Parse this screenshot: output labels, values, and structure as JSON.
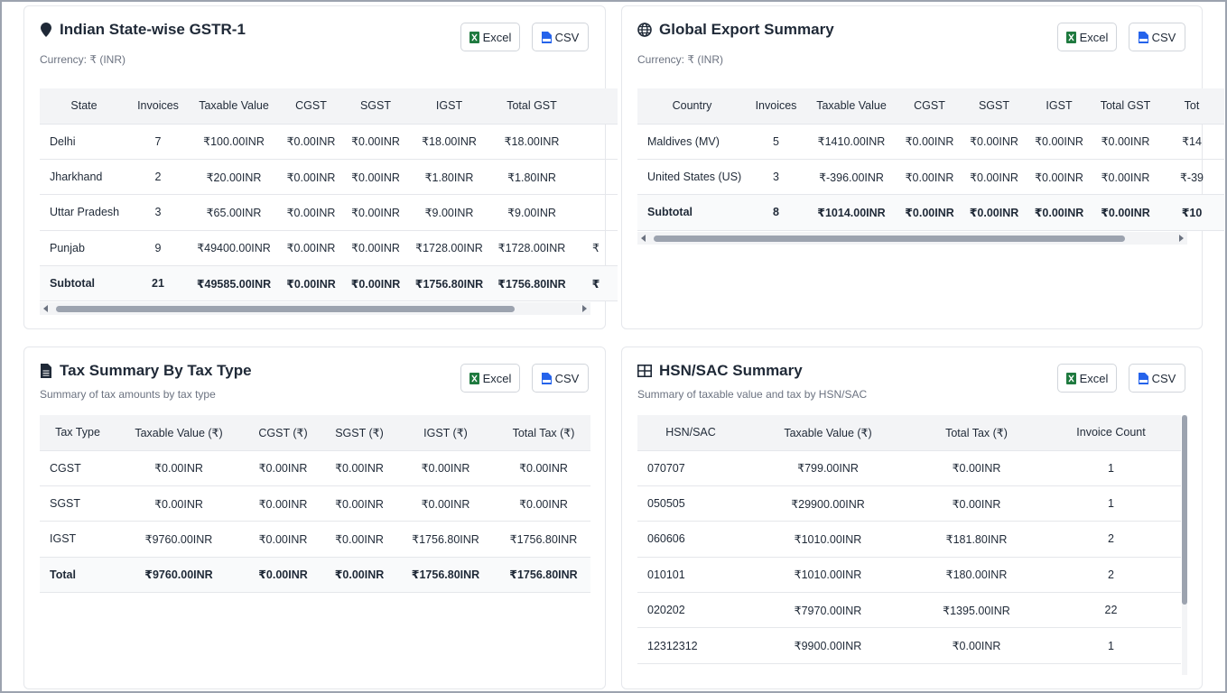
{
  "common": {
    "excel_label": "Excel",
    "csv_label": "CSV"
  },
  "gstr": {
    "title": "Indian State-wise GSTR-1",
    "subtitle": "Currency: ₹ (INR)",
    "headers": [
      "State",
      "Invoices",
      "Taxable Value",
      "CGST",
      "SGST",
      "IGST",
      "Total GST",
      ""
    ],
    "rows": [
      [
        "Delhi",
        "7",
        "₹100.00INR",
        "₹0.00INR",
        "₹0.00INR",
        "₹18.00INR",
        "₹18.00INR",
        ""
      ],
      [
        "Jharkhand",
        "2",
        "₹20.00INR",
        "₹0.00INR",
        "₹0.00INR",
        "₹1.80INR",
        "₹1.80INR",
        ""
      ],
      [
        "Uttar Pradesh",
        "3",
        "₹65.00INR",
        "₹0.00INR",
        "₹0.00INR",
        "₹9.00INR",
        "₹9.00INR",
        ""
      ],
      [
        "Punjab",
        "9",
        "₹49400.00INR",
        "₹0.00INR",
        "₹0.00INR",
        "₹1728.00INR",
        "₹1728.00INR",
        "₹"
      ],
      [
        "Subtotal",
        "21",
        "₹49585.00INR",
        "₹0.00INR",
        "₹0.00INR",
        "₹1756.80INR",
        "₹1756.80INR",
        "₹"
      ]
    ]
  },
  "export": {
    "title": "Global Export Summary",
    "subtitle": "Currency: ₹ (INR)",
    "headers": [
      "Country",
      "Invoices",
      "Taxable Value",
      "CGST",
      "SGST",
      "IGST",
      "Total GST",
      "Tot"
    ],
    "rows": [
      [
        "Maldives (MV)",
        "5",
        "₹1410.00INR",
        "₹0.00INR",
        "₹0.00INR",
        "₹0.00INR",
        "₹0.00INR",
        "₹14"
      ],
      [
        "United States (US)",
        "3",
        "₹-396.00INR",
        "₹0.00INR",
        "₹0.00INR",
        "₹0.00INR",
        "₹0.00INR",
        "₹-39"
      ],
      [
        "Subtotal",
        "8",
        "₹1014.00INR",
        "₹0.00INR",
        "₹0.00INR",
        "₹0.00INR",
        "₹0.00INR",
        "₹10"
      ]
    ]
  },
  "tax": {
    "title": "Tax Summary By Tax Type",
    "subtitle": "Summary of tax amounts by tax type",
    "headers": [
      "Tax Type",
      "Taxable Value (₹)",
      "CGST (₹)",
      "SGST (₹)",
      "IGST (₹)",
      "Total Tax (₹)"
    ],
    "rows": [
      [
        "CGST",
        "₹0.00INR",
        "₹0.00INR",
        "₹0.00INR",
        "₹0.00INR",
        "₹0.00INR"
      ],
      [
        "SGST",
        "₹0.00INR",
        "₹0.00INR",
        "₹0.00INR",
        "₹0.00INR",
        "₹0.00INR"
      ],
      [
        "IGST",
        "₹9760.00INR",
        "₹0.00INR",
        "₹0.00INR",
        "₹1756.80INR",
        "₹1756.80INR"
      ],
      [
        "Total",
        "₹9760.00INR",
        "₹0.00INR",
        "₹0.00INR",
        "₹1756.80INR",
        "₹1756.80INR"
      ]
    ]
  },
  "hsn": {
    "title": "HSN/SAC Summary",
    "subtitle": "Summary of taxable value and tax by HSN/SAC",
    "headers": [
      "HSN/SAC",
      "Taxable Value (₹)",
      "Total Tax (₹)",
      "Invoice Count"
    ],
    "rows": [
      [
        "070707",
        "₹799.00INR",
        "₹0.00INR",
        "1"
      ],
      [
        "050505",
        "₹29900.00INR",
        "₹0.00INR",
        "1"
      ],
      [
        "060606",
        "₹1010.00INR",
        "₹181.80INR",
        "2"
      ],
      [
        "010101",
        "₹1010.00INR",
        "₹180.00INR",
        "2"
      ],
      [
        "020202",
        "₹7970.00INR",
        "₹1395.00INR",
        "22"
      ],
      [
        "12312312",
        "₹9900.00INR",
        "₹0.00INR",
        "1"
      ]
    ]
  }
}
